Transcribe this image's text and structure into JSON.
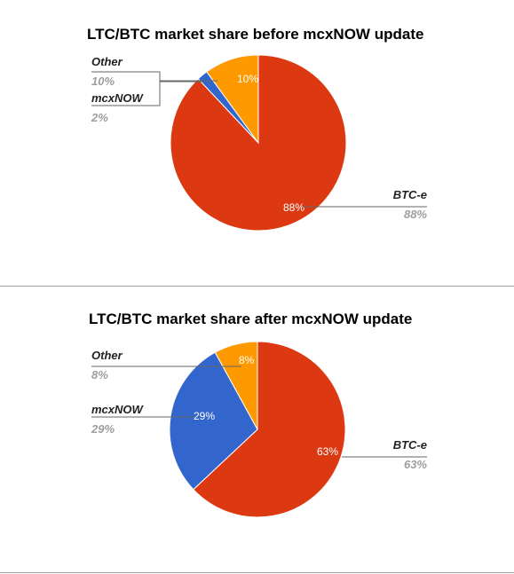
{
  "chart_data": [
    {
      "type": "pie",
      "title": "LTC/BTC market share before mcxNOW update",
      "slices": [
        {
          "name": "BTC-e",
          "value": 88,
          "label": "88%",
          "color": "#dc3912"
        },
        {
          "name": "mcxNOW",
          "value": 2,
          "label": "2%",
          "color": "#3366cc"
        },
        {
          "name": "Other",
          "value": 10,
          "label": "10%",
          "color": "#ff9900"
        }
      ],
      "legend": "labeled"
    },
    {
      "type": "pie",
      "title": "LTC/BTC market share after mcxNOW update",
      "slices": [
        {
          "name": "BTC-e",
          "value": 63,
          "label": "63%",
          "color": "#dc3912"
        },
        {
          "name": "mcxNOW",
          "value": 29,
          "label": "29%",
          "color": "#3366cc"
        },
        {
          "name": "Other",
          "value": 8,
          "label": "8%",
          "color": "#ff9900"
        }
      ],
      "legend": "labeled"
    }
  ]
}
